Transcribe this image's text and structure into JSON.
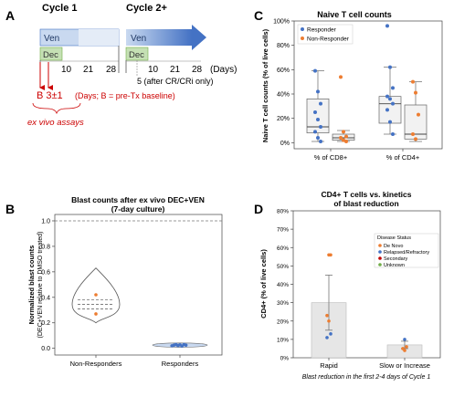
{
  "panel_letters": {
    "a": "A",
    "b": "B",
    "c": "C",
    "d": "D"
  },
  "panel_a": {
    "cycle1_title": "Cycle 1",
    "cycle2_title": "Cycle 2+",
    "ven_label": "Ven",
    "dec_label": "Dec",
    "days_cycle1": [
      "10",
      "21",
      "28"
    ],
    "days_cycle2": [
      "10",
      "21",
      "28"
    ],
    "days_unit": "(Days)",
    "note_cycle2": "5 (after CR/CRi only)",
    "sample_label": "B 3±1",
    "sample_note": "(Days; B = pre-Tx baseline)",
    "exvivo_label": "ex vivo assays",
    "colors": {
      "bar": "#aec7e8",
      "bar_dark": "#4472c4",
      "dec": "#c5e0b4",
      "red": "#cc0000"
    }
  },
  "chart_data": [
    {
      "panel": "B",
      "type": "violin",
      "title": "Blast counts after ex vivo DEC+VEN",
      "subtitle": "(7-day culture)",
      "ylabel": "Normalized blast counts",
      "ylabel2": "(DEC+VEN relative to DMSO treated)",
      "categories": [
        "Non-Responders",
        "Responders"
      ],
      "ylim": [
        0,
        1.05
      ],
      "yticks": [
        "0.0",
        "0.2",
        "0.4",
        "0.6",
        "0.8",
        "1.0"
      ],
      "reference_line": 1.0,
      "points": [
        {
          "category": "Non-Responders",
          "values": [
            0.42,
            0.27
          ]
        },
        {
          "category": "Responders",
          "values": [
            0.02,
            0.025,
            0.03,
            0.022,
            0.028,
            0.018,
            0.03,
            0.025
          ]
        }
      ],
      "violins": [
        {
          "category": "Non-Responders",
          "min": 0.2,
          "max": 0.63,
          "q1": 0.31,
          "median": 0.345,
          "q3": 0.38
        },
        {
          "category": "Responders",
          "min": 0.015,
          "max": 0.035
        }
      ]
    },
    {
      "panel": "C",
      "type": "box",
      "title": "Naive T cell counts",
      "ylabel": "Naive T cell counts (% of live cells)",
      "categories": [
        "% of CD8+",
        "% of CD4+"
      ],
      "yticks": [
        "0%",
        "20%",
        "40%",
        "60%",
        "80%",
        "100%"
      ],
      "ylim": [
        0,
        100
      ],
      "legend": [
        "Responder",
        "Non-Responder"
      ],
      "legend_position": "top-left",
      "series": [
        {
          "name": "Responder",
          "color": "#4472c4",
          "groups": [
            {
              "category": "% of CD8+",
              "q1": 8,
              "median": 13,
              "q3": 36,
              "whisker_low": 1,
              "whisker_high": 59,
              "values": [
                59,
                42,
                32,
                25,
                19,
                13,
                9,
                4,
                1
              ]
            },
            {
              "category": "% of CD4+",
              "q1": 16,
              "median": 32,
              "q3": 38,
              "whisker_low": 7,
              "whisker_high": 62,
              "values": [
                96,
                62,
                45,
                38,
                36,
                32,
                27,
                17,
                7
              ]
            }
          ]
        },
        {
          "name": "Non-Responder",
          "color": "#ed7d31",
          "groups": [
            {
              "category": "% of CD8+",
              "q1": 2,
              "median": 4,
              "q3": 7,
              "whisker_low": 1,
              "whisker_high": 10,
              "values": [
                54,
                9,
                5,
                4,
                2,
                1
              ]
            },
            {
              "category": "% of CD4+",
              "q1": 3,
              "median": 7,
              "q3": 31,
              "whisker_low": 1,
              "whisker_high": 50,
              "values": [
                50,
                41,
                23,
                7,
                3
              ]
            }
          ]
        }
      ]
    },
    {
      "panel": "D",
      "type": "bar",
      "title": "CD4+ T cells vs. kinetics",
      "subtitle": "of blast reduction",
      "ylabel": "CD4+ (% of live cells)",
      "xlabel": "Blast reduction in the first 2-4 days of Cycle 1",
      "categories": [
        "Rapid",
        "Slow or Increase"
      ],
      "values": [
        30,
        7
      ],
      "errors": [
        15,
        2
      ],
      "ylim": [
        0,
        80
      ],
      "yticks": [
        "0%",
        "10%",
        "20%",
        "30%",
        "40%",
        "50%",
        "60%",
        "70%",
        "80%"
      ],
      "legend_title": "Disease Status",
      "legend": [
        {
          "name": "De Novo",
          "color": "#ed7d31"
        },
        {
          "name": "Relapsed/Refractory",
          "color": "#4472c4"
        },
        {
          "name": "Secondary",
          "color": "#c00000"
        },
        {
          "name": "Unknown",
          "color": "#70ad47"
        }
      ],
      "legend_position": "top-right",
      "points": [
        {
          "category": "Rapid",
          "value": 56,
          "status": "De Novo"
        },
        {
          "category": "Rapid",
          "value": 56,
          "status": "De Novo"
        },
        {
          "category": "Rapid",
          "value": 23,
          "status": "De Novo"
        },
        {
          "category": "Rapid",
          "value": 20,
          "status": "De Novo"
        },
        {
          "category": "Rapid",
          "value": 13,
          "status": "Relapsed/Refractory"
        },
        {
          "category": "Rapid",
          "value": 11,
          "status": "Relapsed/Refractory"
        },
        {
          "category": "Slow or Increase",
          "value": 10,
          "status": "Relapsed/Refractory"
        },
        {
          "category": "Slow or Increase",
          "value": 6,
          "status": "De Novo"
        },
        {
          "category": "Slow or Increase",
          "value": 5,
          "status": "De Novo"
        },
        {
          "category": "Slow or Increase",
          "value": 4,
          "status": "De Novo"
        }
      ]
    }
  ]
}
